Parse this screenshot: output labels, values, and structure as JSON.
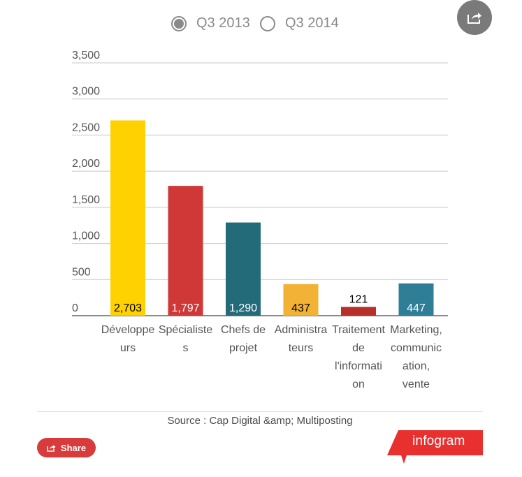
{
  "toggle": {
    "options": [
      {
        "label": "Q3 2013",
        "selected": true
      },
      {
        "label": "Q3 2014",
        "selected": false
      }
    ]
  },
  "chart_data": {
    "type": "bar",
    "categories": [
      [
        "Développe",
        "urs"
      ],
      [
        "Spécialiste",
        "s"
      ],
      [
        "Chefs de",
        "projet"
      ],
      [
        "Administra",
        "teurs"
      ],
      [
        "Traitement",
        "de",
        "l'informati",
        "on"
      ],
      [
        "Marketing,",
        "communic",
        "ation,",
        "vente"
      ]
    ],
    "values": [
      2703,
      1797,
      1290,
      437,
      121,
      447
    ],
    "value_labels": [
      "2,703",
      "1,797",
      "1,290",
      "437",
      "121",
      "447"
    ],
    "colors": [
      "#ffd100",
      "#d03838",
      "#246b7a",
      "#f2b233",
      "#b8302a",
      "#2e7e97"
    ],
    "label_colors": [
      "#000000",
      "#ffffff",
      "#ffffff",
      "#000000",
      "#000000",
      "#ffffff"
    ],
    "yticks": [
      "0",
      "500",
      "1,000",
      "1,500",
      "2,000",
      "2,500",
      "3,000",
      "3,500"
    ],
    "ylim": [
      0,
      3500
    ],
    "grid": true
  },
  "source": "Source : Cap Digital &amp; Multiposting",
  "share_label": "Share",
  "brand": "infogram"
}
